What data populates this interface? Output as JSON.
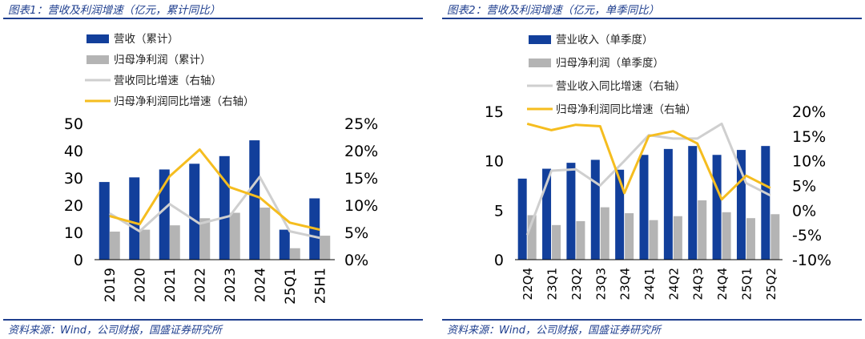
{
  "charts": [
    {
      "title": "图表1：营收及利润增速（亿元，累计同比）",
      "source": "资料来源：Wind，公司财报，国盛证券研究所",
      "legend": [
        "营收（累计）",
        "归母净利润（累计）",
        "营收同比增速（右轴）",
        "归母净利润同比增速（右轴）"
      ],
      "left_ticks": [
        "0",
        "10",
        "20",
        "30",
        "40",
        "50"
      ],
      "right_ticks": [
        "0%",
        "5%",
        "10%",
        "15%",
        "20%",
        "25%"
      ]
    },
    {
      "title": "图表2：营收及利润增速（亿元，单季同比）",
      "source": "资料来源：Wind，公司财报，国盛证券研究所",
      "legend": [
        "营业收入（单季度）",
        "归母净利润（单季度）",
        "营业收入同比增速（右轴）",
        "归母净利润同比增速（右轴）"
      ],
      "left_ticks": [
        "0",
        "5",
        "10",
        "15"
      ],
      "right_ticks": [
        "-10%",
        "-5%",
        "0%",
        "5%",
        "10%",
        "15%",
        "20%"
      ]
    }
  ],
  "colors": {
    "bar1": "#123f9b",
    "bar2": "#b4b4b4",
    "line1": "#cfcfcf",
    "line2": "#f5bd1f",
    "frame": "#1f3f8f"
  },
  "chart_data": [
    {
      "type": "bar",
      "categories": [
        "2019",
        "2020",
        "2021",
        "2022",
        "2023",
        "2024",
        "25Q1",
        "25H1"
      ],
      "series": [
        {
          "name": "营收（累计）",
          "type": "bar",
          "axis": "left",
          "values": [
            28.5,
            30.2,
            33.1,
            35.2,
            38,
            43.8,
            11,
            22.5
          ]
        },
        {
          "name": "归母净利润（累计）",
          "type": "bar",
          "axis": "left",
          "values": [
            10.3,
            11,
            12.6,
            15.2,
            17.2,
            19.1,
            4.2,
            8.8
          ]
        },
        {
          "name": "营收同比增速（右轴）",
          "type": "line",
          "axis": "right",
          "values": [
            8.5,
            5.2,
            10.2,
            6.6,
            8,
            15.2,
            5.2,
            4
          ]
        },
        {
          "name": "归母净利润同比增速（右轴）",
          "type": "line",
          "axis": "right",
          "values": [
            8,
            6.5,
            15.3,
            20.2,
            13.3,
            11.4,
            6.8,
            5.5
          ]
        }
      ],
      "ylim": [
        0,
        50
      ],
      "y2lim": [
        0,
        25
      ],
      "legend_position": "top",
      "grid": false
    },
    {
      "type": "bar",
      "categories": [
        "22Q4",
        "23Q1",
        "23Q2",
        "23Q3",
        "23Q4",
        "24Q1",
        "24Q2",
        "24Q3",
        "24Q4",
        "25Q1",
        "25Q2"
      ],
      "series": [
        {
          "name": "营业收入（单季度）",
          "type": "bar",
          "axis": "left",
          "values": [
            8.2,
            9.2,
            9.8,
            10.1,
            9.1,
            10.6,
            11.2,
            11.5,
            10.6,
            11.1,
            11.5
          ]
        },
        {
          "name": "归母净利润（单季度）",
          "type": "bar",
          "axis": "left",
          "values": [
            4.5,
            3.5,
            3.9,
            5.3,
            4.7,
            4,
            4.4,
            6,
            4.8,
            4.2,
            4.6
          ]
        },
        {
          "name": "营业收入同比增速（右轴）",
          "type": "line",
          "axis": "right",
          "values": [
            -5,
            8,
            8.3,
            5,
            10,
            15.2,
            14.5,
            14.5,
            17.5,
            5.5,
            3
          ]
        },
        {
          "name": "归母净利润同比增速（右轴）",
          "type": "line",
          "axis": "right",
          "values": [
            17.5,
            16.2,
            17.3,
            17,
            3.5,
            15,
            16,
            13.5,
            2.2,
            7,
            4.5
          ]
        }
      ],
      "ylim": [
        0,
        15
      ],
      "y2lim": [
        -10,
        20
      ],
      "legend_position": "top",
      "grid": false
    }
  ]
}
